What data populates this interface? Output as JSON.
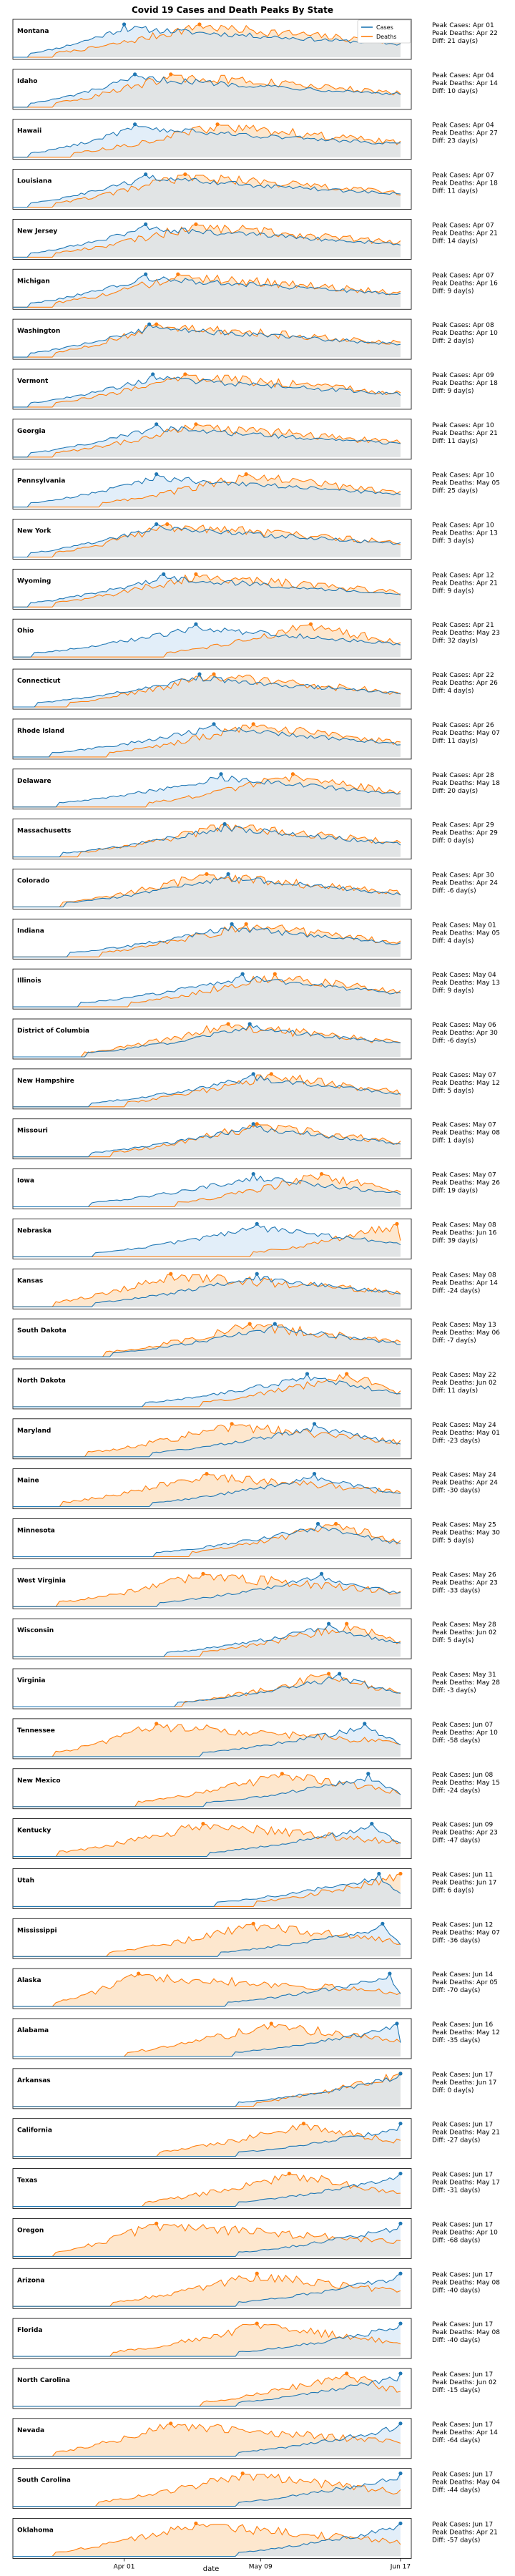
{
  "chart_data": {
    "type": "area",
    "title": "Covid 19 Cases and Death Peaks By State",
    "xlabel": "date",
    "x_ticks": [
      "Apr 01",
      "May 09",
      "Jun 17"
    ],
    "x_range": [
      "2020-03-01",
      "2020-06-20"
    ],
    "legend": {
      "placement": "top-right",
      "entries": [
        "Cases",
        "Deaths"
      ]
    },
    "colors": {
      "Cases": "#1f77b4",
      "Deaths": "#ff7f0e",
      "Cases_fill": "#cfe3f5",
      "Deaths_fill": "#fde3c5"
    },
    "y_normalized": true,
    "grid": false,
    "states": [
      {
        "name": "Montana",
        "peak_cases": "Apr 01",
        "peak_deaths": "Apr 22",
        "diff": "21 day(s)",
        "cases_peak_offset": 31,
        "deaths_peak_offset": 52
      },
      {
        "name": "Idaho",
        "peak_cases": "Apr 04",
        "peak_deaths": "Apr 14",
        "diff": "10 day(s)",
        "cases_peak_offset": 34,
        "deaths_peak_offset": 44
      },
      {
        "name": "Hawaii",
        "peak_cases": "Apr 04",
        "peak_deaths": "Apr 27",
        "diff": "23 day(s)",
        "cases_peak_offset": 34,
        "deaths_peak_offset": 57
      },
      {
        "name": "Louisiana",
        "peak_cases": "Apr 07",
        "peak_deaths": "Apr 18",
        "diff": "11 day(s)",
        "cases_peak_offset": 37,
        "deaths_peak_offset": 48
      },
      {
        "name": "New Jersey",
        "peak_cases": "Apr 07",
        "peak_deaths": "Apr 21",
        "diff": "14 day(s)",
        "cases_peak_offset": 37,
        "deaths_peak_offset": 51
      },
      {
        "name": "Michigan",
        "peak_cases": "Apr 07",
        "peak_deaths": "Apr 16",
        "diff": "9 day(s)",
        "cases_peak_offset": 37,
        "deaths_peak_offset": 46
      },
      {
        "name": "Washington",
        "peak_cases": "Apr 08",
        "peak_deaths": "Apr 10",
        "diff": "2 day(s)",
        "cases_peak_offset": 38,
        "deaths_peak_offset": 40
      },
      {
        "name": "Vermont",
        "peak_cases": "Apr 09",
        "peak_deaths": "Apr 18",
        "diff": "9 day(s)",
        "cases_peak_offset": 39,
        "deaths_peak_offset": 48
      },
      {
        "name": "Georgia",
        "peak_cases": "Apr 10",
        "peak_deaths": "Apr 21",
        "diff": "11 day(s)",
        "cases_peak_offset": 40,
        "deaths_peak_offset": 51
      },
      {
        "name": "Pennsylvania",
        "peak_cases": "Apr 10",
        "peak_deaths": "May 05",
        "diff": "25 day(s)",
        "cases_peak_offset": 40,
        "deaths_peak_offset": 65
      },
      {
        "name": "New York",
        "peak_cases": "Apr 10",
        "peak_deaths": "Apr 13",
        "diff": "3 day(s)",
        "cases_peak_offset": 40,
        "deaths_peak_offset": 43
      },
      {
        "name": "Wyoming",
        "peak_cases": "Apr 12",
        "peak_deaths": "Apr 21",
        "diff": "9 day(s)",
        "cases_peak_offset": 42,
        "deaths_peak_offset": 51
      },
      {
        "name": "Ohio",
        "peak_cases": "Apr 21",
        "peak_deaths": "May 23",
        "diff": "32 day(s)",
        "cases_peak_offset": 51,
        "deaths_peak_offset": 83
      },
      {
        "name": "Connecticut",
        "peak_cases": "Apr 22",
        "peak_deaths": "Apr 26",
        "diff": "4 day(s)",
        "cases_peak_offset": 52,
        "deaths_peak_offset": 56
      },
      {
        "name": "Rhode Island",
        "peak_cases": "Apr 26",
        "peak_deaths": "May 07",
        "diff": "11 day(s)",
        "cases_peak_offset": 56,
        "deaths_peak_offset": 67
      },
      {
        "name": "Delaware",
        "peak_cases": "Apr 28",
        "peak_deaths": "May 18",
        "diff": "20 day(s)",
        "cases_peak_offset": 58,
        "deaths_peak_offset": 78
      },
      {
        "name": "Massachusetts",
        "peak_cases": "Apr 29",
        "peak_deaths": "Apr 29",
        "diff": "0 day(s)",
        "cases_peak_offset": 59,
        "deaths_peak_offset": 59
      },
      {
        "name": "Colorado",
        "peak_cases": "Apr 30",
        "peak_deaths": "Apr 24",
        "diff": "-6 day(s)",
        "cases_peak_offset": 60,
        "deaths_peak_offset": 54
      },
      {
        "name": "Indiana",
        "peak_cases": "May 01",
        "peak_deaths": "May 05",
        "diff": "4 day(s)",
        "cases_peak_offset": 61,
        "deaths_peak_offset": 65
      },
      {
        "name": "Illinois",
        "peak_cases": "May 04",
        "peak_deaths": "May 13",
        "diff": "9 day(s)",
        "cases_peak_offset": 64,
        "deaths_peak_offset": 73
      },
      {
        "name": "District of Columbia",
        "peak_cases": "May 06",
        "peak_deaths": "Apr 30",
        "diff": "-6 day(s)",
        "cases_peak_offset": 66,
        "deaths_peak_offset": 60
      },
      {
        "name": "New Hampshire",
        "peak_cases": "May 07",
        "peak_deaths": "May 12",
        "diff": "5 day(s)",
        "cases_peak_offset": 67,
        "deaths_peak_offset": 72
      },
      {
        "name": "Missouri",
        "peak_cases": "May 07",
        "peak_deaths": "May 08",
        "diff": "1 day(s)",
        "cases_peak_offset": 67,
        "deaths_peak_offset": 68
      },
      {
        "name": "Iowa",
        "peak_cases": "May 07",
        "peak_deaths": "May 26",
        "diff": "19 day(s)",
        "cases_peak_offset": 67,
        "deaths_peak_offset": 86
      },
      {
        "name": "Nebraska",
        "peak_cases": "May 08",
        "peak_deaths": "Jun 16",
        "diff": "39 day(s)",
        "cases_peak_offset": 68,
        "deaths_peak_offset": 107
      },
      {
        "name": "Kansas",
        "peak_cases": "May 08",
        "peak_deaths": "Apr 14",
        "diff": "-24 day(s)",
        "cases_peak_offset": 68,
        "deaths_peak_offset": 44
      },
      {
        "name": "South Dakota",
        "peak_cases": "May 13",
        "peak_deaths": "May 06",
        "diff": "-7 day(s)",
        "cases_peak_offset": 73,
        "deaths_peak_offset": 66
      },
      {
        "name": "North Dakota",
        "peak_cases": "May 22",
        "peak_deaths": "Jun 02",
        "diff": "11 day(s)",
        "cases_peak_offset": 82,
        "deaths_peak_offset": 93
      },
      {
        "name": "Maryland",
        "peak_cases": "May 24",
        "peak_deaths": "May 01",
        "diff": "-23 day(s)",
        "cases_peak_offset": 84,
        "deaths_peak_offset": 61
      },
      {
        "name": "Maine",
        "peak_cases": "May 24",
        "peak_deaths": "Apr 24",
        "diff": "-30 day(s)",
        "cases_peak_offset": 84,
        "deaths_peak_offset": 54
      },
      {
        "name": "Minnesota",
        "peak_cases": "May 25",
        "peak_deaths": "May 30",
        "diff": "5 day(s)",
        "cases_peak_offset": 85,
        "deaths_peak_offset": 90
      },
      {
        "name": "West Virginia",
        "peak_cases": "May 26",
        "peak_deaths": "Apr 23",
        "diff": "-33 day(s)",
        "cases_peak_offset": 86,
        "deaths_peak_offset": 53
      },
      {
        "name": "Wisconsin",
        "peak_cases": "May 28",
        "peak_deaths": "Jun 02",
        "diff": "5 day(s)",
        "cases_peak_offset": 88,
        "deaths_peak_offset": 93
      },
      {
        "name": "Virginia",
        "peak_cases": "May 31",
        "peak_deaths": "May 28",
        "diff": "-3 day(s)",
        "cases_peak_offset": 91,
        "deaths_peak_offset": 88
      },
      {
        "name": "Tennessee",
        "peak_cases": "Jun 07",
        "peak_deaths": "Apr 10",
        "diff": "-58 day(s)",
        "cases_peak_offset": 98,
        "deaths_peak_offset": 40
      },
      {
        "name": "New Mexico",
        "peak_cases": "Jun 08",
        "peak_deaths": "May 15",
        "diff": "-24 day(s)",
        "cases_peak_offset": 99,
        "deaths_peak_offset": 75
      },
      {
        "name": "Kentucky",
        "peak_cases": "Jun 09",
        "peak_deaths": "Apr 23",
        "diff": "-47 day(s)",
        "cases_peak_offset": 100,
        "deaths_peak_offset": 53
      },
      {
        "name": "Utah",
        "peak_cases": "Jun 11",
        "peak_deaths": "Jun 17",
        "diff": "6 day(s)",
        "cases_peak_offset": 102,
        "deaths_peak_offset": 108
      },
      {
        "name": "Mississippi",
        "peak_cases": "Jun 12",
        "peak_deaths": "May 07",
        "diff": "-36 day(s)",
        "cases_peak_offset": 103,
        "deaths_peak_offset": 67
      },
      {
        "name": "Alaska",
        "peak_cases": "Jun 14",
        "peak_deaths": "Apr 05",
        "diff": "-70 day(s)",
        "cases_peak_offset": 105,
        "deaths_peak_offset": 35
      },
      {
        "name": "Alabama",
        "peak_cases": "Jun 16",
        "peak_deaths": "May 12",
        "diff": "-35 day(s)",
        "cases_peak_offset": 107,
        "deaths_peak_offset": 72
      },
      {
        "name": "Arkansas",
        "peak_cases": "Jun 17",
        "peak_deaths": "Jun 17",
        "diff": "0 day(s)",
        "cases_peak_offset": 108,
        "deaths_peak_offset": 108
      },
      {
        "name": "California",
        "peak_cases": "Jun 17",
        "peak_deaths": "May 21",
        "diff": "-27 day(s)",
        "cases_peak_offset": 108,
        "deaths_peak_offset": 81
      },
      {
        "name": "Texas",
        "peak_cases": "Jun 17",
        "peak_deaths": "May 17",
        "diff": "-31 day(s)",
        "cases_peak_offset": 108,
        "deaths_peak_offset": 77
      },
      {
        "name": "Oregon",
        "peak_cases": "Jun 17",
        "peak_deaths": "Apr 10",
        "diff": "-68 day(s)",
        "cases_peak_offset": 108,
        "deaths_peak_offset": 40
      },
      {
        "name": "Arizona",
        "peak_cases": "Jun 17",
        "peak_deaths": "May 08",
        "diff": "-40 day(s)",
        "cases_peak_offset": 108,
        "deaths_peak_offset": 68
      },
      {
        "name": "Florida",
        "peak_cases": "Jun 17",
        "peak_deaths": "May 08",
        "diff": "-40 day(s)",
        "cases_peak_offset": 108,
        "deaths_peak_offset": 68
      },
      {
        "name": "North Carolina",
        "peak_cases": "Jun 17",
        "peak_deaths": "Jun 02",
        "diff": "-15 day(s)",
        "cases_peak_offset": 108,
        "deaths_peak_offset": 93
      },
      {
        "name": "Nevada",
        "peak_cases": "Jun 17",
        "peak_deaths": "Apr 14",
        "diff": "-64 day(s)",
        "cases_peak_offset": 108,
        "deaths_peak_offset": 44
      },
      {
        "name": "South Carolina",
        "peak_cases": "Jun 17",
        "peak_deaths": "May 04",
        "diff": "-44 day(s)",
        "cases_peak_offset": 108,
        "deaths_peak_offset": 64
      },
      {
        "name": "Oklahoma",
        "peak_cases": "Jun 17",
        "peak_deaths": "Apr 21",
        "diff": "-57 day(s)",
        "cases_peak_offset": 108,
        "deaths_peak_offset": 51
      }
    ],
    "info_labels": {
      "cases": "Peak Cases: ",
      "deaths": "Peak Deaths: ",
      "diff": "Diff: "
    }
  }
}
